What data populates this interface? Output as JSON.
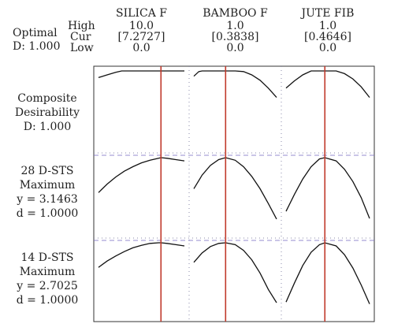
{
  "header": {
    "optimal_label": "Optimal",
    "optimal_d": "D: 1.000",
    "row_labels": [
      "High",
      "Cur",
      "Low"
    ]
  },
  "columns": [
    {
      "name": "SILICA F",
      "high": "10.0",
      "cur": "[7.2727]",
      "low": "0.0"
    },
    {
      "name": "BAMBOO F",
      "high": "1.0",
      "cur": "[0.3838]",
      "low": "0.0"
    },
    {
      "name": "JUTE FIB",
      "high": "1.0",
      "cur": "[0.4646]",
      "low": "0.0"
    }
  ],
  "rows": [
    {
      "lines": [
        "Composite",
        "Desirability",
        "D: 1.000"
      ]
    },
    {
      "lines": [
        "28 D-STS",
        "Maximum",
        "y = 3.1463",
        "d = 1.0000"
      ]
    },
    {
      "lines": [
        "14 D-STS",
        "Maximum",
        "y = 2.7025",
        "d = 1.0000"
      ]
    }
  ],
  "colors": {
    "curve": "#111111",
    "current": "#c0392b",
    "target": "#7b6fc4",
    "grid": "#8a8aa8"
  },
  "chart_data": {
    "type": "line",
    "title": "",
    "factors": [
      {
        "name": "SILICA F",
        "low": 0.0,
        "high": 10.0,
        "current": 7.2727
      },
      {
        "name": "BAMBOO F",
        "low": 0.0,
        "high": 1.0,
        "current": 0.3838
      },
      {
        "name": "JUTE FIB",
        "low": 0.0,
        "high": 1.0,
        "current": 0.4646
      }
    ],
    "panels": [
      {
        "response": "Composite Desirability",
        "goal": "",
        "current_value": 1.0,
        "curves": [
          {
            "factor": "SILICA F",
            "x": [
              0,
              1,
              2,
              2.7,
              4,
              6,
              7.27,
              10
            ],
            "y": [
              0.9,
              0.94,
              0.98,
              1.0,
              1.0,
              1.0,
              1.0,
              1.0
            ]
          },
          {
            "factor": "BAMBOO F",
            "x": [
              0,
              0.06,
              0.1,
              0.2,
              0.3838,
              0.5,
              0.6,
              0.7,
              0.8,
              0.9,
              1.0
            ],
            "y": [
              0.92,
              0.99,
              1.0,
              1.0,
              1.0,
              1.0,
              0.99,
              0.94,
              0.86,
              0.74,
              0.6
            ]
          },
          {
            "factor": "JUTE FIB",
            "x": [
              0,
              0.1,
              0.2,
              0.3,
              0.4646,
              0.6,
              0.7,
              0.8,
              0.9,
              1.0
            ],
            "y": [
              0.74,
              0.85,
              0.94,
              1.0,
              1.0,
              1.0,
              0.96,
              0.88,
              0.76,
              0.6
            ]
          }
        ]
      },
      {
        "response": "28 D-STS",
        "goal": "Maximum",
        "current_value": 3.1463,
        "curves": [
          {
            "factor": "SILICA F",
            "x": [
              0,
              1,
              2,
              3,
              4,
              5,
              6,
              7,
              7.27,
              8,
              9,
              10
            ],
            "y": [
              0.46,
              0.59,
              0.7,
              0.79,
              0.86,
              0.92,
              0.96,
              0.99,
              1.0,
              0.99,
              0.97,
              0.95
            ]
          },
          {
            "factor": "BAMBOO F",
            "x": [
              0,
              0.1,
              0.2,
              0.3,
              0.3838,
              0.5,
              0.6,
              0.7,
              0.8,
              0.9,
              1.0
            ],
            "y": [
              0.52,
              0.73,
              0.88,
              0.97,
              1.0,
              0.96,
              0.86,
              0.71,
              0.52,
              0.29,
              0.05
            ]
          },
          {
            "factor": "JUTE FIB",
            "x": [
              0,
              0.1,
              0.2,
              0.3,
              0.4,
              0.4646,
              0.6,
              0.7,
              0.8,
              0.9,
              1.0
            ],
            "y": [
              0.17,
              0.43,
              0.67,
              0.86,
              0.98,
              1.0,
              0.95,
              0.82,
              0.63,
              0.38,
              0.06
            ]
          }
        ]
      },
      {
        "response": "14 D-STS",
        "goal": "Maximum",
        "current_value": 2.7025,
        "curves": [
          {
            "factor": "SILICA F",
            "x": [
              0,
              1,
              2,
              3,
              4,
              5,
              6,
              7,
              7.27,
              8,
              9,
              10
            ],
            "y": [
              0.61,
              0.71,
              0.79,
              0.86,
              0.92,
              0.96,
              0.99,
              1.0,
              1.0,
              0.99,
              0.97,
              0.95
            ]
          },
          {
            "factor": "BAMBOO F",
            "x": [
              0,
              0.1,
              0.2,
              0.3,
              0.3838,
              0.5,
              0.6,
              0.7,
              0.8,
              0.9,
              1.0
            ],
            "y": [
              0.69,
              0.84,
              0.94,
              0.99,
              1.0,
              0.97,
              0.88,
              0.73,
              0.52,
              0.26,
              0.05
            ]
          },
          {
            "factor": "JUTE FIB",
            "x": [
              0,
              0.1,
              0.2,
              0.3,
              0.4,
              0.4646,
              0.6,
              0.7,
              0.8,
              0.9,
              1.0
            ],
            "y": [
              0.06,
              0.36,
              0.64,
              0.85,
              0.97,
              1.0,
              0.95,
              0.81,
              0.6,
              0.33,
              0.03
            ]
          }
        ]
      }
    ]
  }
}
